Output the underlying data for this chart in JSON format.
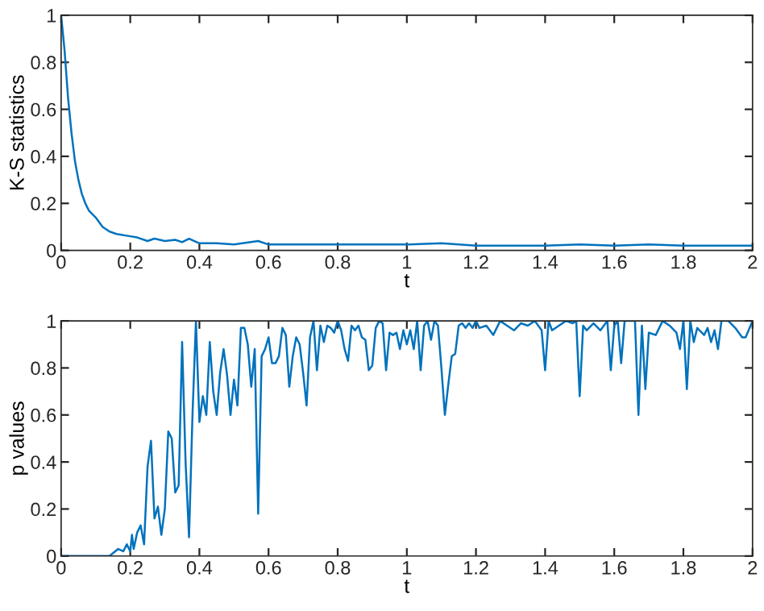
{
  "chart_data": [
    {
      "type": "line",
      "xlabel": "t",
      "ylabel": "K-S statistics",
      "grid": false,
      "xlim": [
        0,
        2
      ],
      "ylim": [
        0,
        1
      ],
      "xticks": [
        0,
        0.2,
        0.4,
        0.6,
        0.8,
        1,
        1.2,
        1.4,
        1.6,
        1.8,
        2
      ],
      "yticks": [
        0,
        0.2,
        0.4,
        0.6,
        0.8,
        1
      ],
      "series": [
        {
          "color": "#0072bd",
          "x": [
            0,
            0.01,
            0.02,
            0.03,
            0.04,
            0.05,
            0.06,
            0.07,
            0.08,
            0.1,
            0.12,
            0.14,
            0.16,
            0.2,
            0.22,
            0.25,
            0.27,
            0.3,
            0.33,
            0.35,
            0.37,
            0.4,
            0.45,
            0.5,
            0.57,
            0.6,
            0.8,
            1.0,
            1.1,
            1.2,
            1.4,
            1.5,
            1.6,
            1.7,
            1.8,
            1.9,
            2.0
          ],
          "values": [
            1,
            0.85,
            0.65,
            0.5,
            0.38,
            0.3,
            0.24,
            0.2,
            0.17,
            0.14,
            0.1,
            0.08,
            0.07,
            0.06,
            0.055,
            0.04,
            0.05,
            0.04,
            0.045,
            0.035,
            0.05,
            0.03,
            0.03,
            0.025,
            0.04,
            0.025,
            0.025,
            0.025,
            0.03,
            0.02,
            0.02,
            0.025,
            0.02,
            0.025,
            0.02,
            0.02,
            0.02
          ]
        }
      ]
    },
    {
      "type": "line",
      "xlabel": "t",
      "ylabel": "p values",
      "grid": false,
      "xlim": [
        0,
        2
      ],
      "ylim": [
        0,
        1
      ],
      "xticks": [
        0,
        0.2,
        0.4,
        0.6,
        0.8,
        1,
        1.2,
        1.4,
        1.6,
        1.8,
        2
      ],
      "yticks": [
        0,
        0.2,
        0.4,
        0.6,
        0.8,
        1
      ],
      "series": [
        {
          "color": "#0072bd",
          "x": [
            0,
            0.14,
            0.165,
            0.18,
            0.19,
            0.2,
            0.205,
            0.21,
            0.22,
            0.23,
            0.24,
            0.25,
            0.26,
            0.27,
            0.28,
            0.29,
            0.3,
            0.31,
            0.32,
            0.33,
            0.34,
            0.35,
            0.36,
            0.37,
            0.38,
            0.39,
            0.4,
            0.41,
            0.42,
            0.43,
            0.44,
            0.45,
            0.46,
            0.47,
            0.48,
            0.49,
            0.5,
            0.51,
            0.52,
            0.53,
            0.54,
            0.55,
            0.56,
            0.57,
            0.58,
            0.59,
            0.6,
            0.61,
            0.62,
            0.63,
            0.64,
            0.65,
            0.66,
            0.67,
            0.68,
            0.69,
            0.7,
            0.71,
            0.72,
            0.73,
            0.74,
            0.75,
            0.76,
            0.77,
            0.78,
            0.79,
            0.8,
            0.81,
            0.82,
            0.83,
            0.84,
            0.85,
            0.86,
            0.87,
            0.88,
            0.89,
            0.9,
            0.91,
            0.92,
            0.93,
            0.94,
            0.95,
            0.96,
            0.97,
            0.98,
            0.99,
            1.0,
            1.01,
            1.02,
            1.03,
            1.04,
            1.05,
            1.06,
            1.07,
            1.08,
            1.09,
            1.1,
            1.11,
            1.12,
            1.13,
            1.14,
            1.15,
            1.16,
            1.17,
            1.18,
            1.19,
            1.2,
            1.21,
            1.23,
            1.25,
            1.27,
            1.29,
            1.31,
            1.33,
            1.35,
            1.37,
            1.39,
            1.4,
            1.41,
            1.42,
            1.44,
            1.46,
            1.48,
            1.49,
            1.5,
            1.51,
            1.52,
            1.54,
            1.56,
            1.58,
            1.59,
            1.6,
            1.61,
            1.62,
            1.63,
            1.65,
            1.66,
            1.67,
            1.68,
            1.69,
            1.7,
            1.72,
            1.74,
            1.76,
            1.78,
            1.79,
            1.8,
            1.81,
            1.82,
            1.83,
            1.84,
            1.86,
            1.87,
            1.88,
            1.89,
            1.9,
            1.91,
            1.93,
            1.95,
            1.97,
            1.98,
            2.0
          ],
          "values": [
            0,
            0,
            0.03,
            0.02,
            0.05,
            0.02,
            0.09,
            0.03,
            0.1,
            0.13,
            0.05,
            0.38,
            0.49,
            0.16,
            0.21,
            0.09,
            0.2,
            0.53,
            0.5,
            0.27,
            0.3,
            0.91,
            0.4,
            0.08,
            0.6,
            1.0,
            0.57,
            0.68,
            0.6,
            0.91,
            0.7,
            0.6,
            0.78,
            0.88,
            0.77,
            0.6,
            0.75,
            0.64,
            0.97,
            0.97,
            0.9,
            0.72,
            0.88,
            0.18,
            0.85,
            0.88,
            0.93,
            0.82,
            0.82,
            0.85,
            0.97,
            0.94,
            0.72,
            0.85,
            0.93,
            0.9,
            0.78,
            0.64,
            0.93,
            1.0,
            0.79,
            0.98,
            0.91,
            0.98,
            0.97,
            0.95,
            1.0,
            0.96,
            0.88,
            0.83,
            0.98,
            0.96,
            0.98,
            0.93,
            0.92,
            0.79,
            0.81,
            0.97,
            1.0,
            0.99,
            0.79,
            0.95,
            0.94,
            0.95,
            0.88,
            0.96,
            0.9,
            0.96,
            0.88,
            1.0,
            0.79,
            0.98,
            1.0,
            0.92,
            1.0,
            0.98,
            0.8,
            0.6,
            0.73,
            0.85,
            0.86,
            0.98,
            0.99,
            0.97,
            0.99,
            0.97,
            1.0,
            0.97,
            0.98,
            0.94,
            1.0,
            0.98,
            0.96,
            0.99,
            0.98,
            1.0,
            0.96,
            0.79,
            1.0,
            0.96,
            0.98,
            1.0,
            0.99,
            1.0,
            0.68,
            0.98,
            0.96,
            0.99,
            0.96,
            1.0,
            0.79,
            0.98,
            1.0,
            0.82,
            1.0,
            1.0,
            1.0,
            0.6,
            0.98,
            0.71,
            0.95,
            0.94,
            1.0,
            0.98,
            0.95,
            0.88,
            1.0,
            0.71,
            1.0,
            0.91,
            0.97,
            0.94,
            0.97,
            0.91,
            0.96,
            0.88,
            1.0,
            1.0,
            0.97,
            0.93,
            0.93,
            1.0
          ]
        }
      ]
    }
  ]
}
